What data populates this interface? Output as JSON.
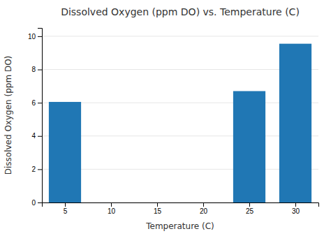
{
  "chart_data": {
    "type": "bar",
    "title": "Dissolved Oxygen (ppm DO) vs. Temperature (C)",
    "x_label": "Temperature (C)",
    "y_label": "Dissolved Oxygen (ppm DO)",
    "x": [
      5,
      25,
      30
    ],
    "values": [
      6.05,
      6.7,
      9.55
    ],
    "color": "#2077B4",
    "xlim": [
      2.5,
      32.5
    ],
    "ylim": [
      0,
      10.5
    ],
    "xticks": [
      5,
      10,
      15,
      20,
      25,
      30
    ],
    "yticks": [
      0,
      2,
      4,
      6,
      8,
      10
    ],
    "grid": true
  }
}
